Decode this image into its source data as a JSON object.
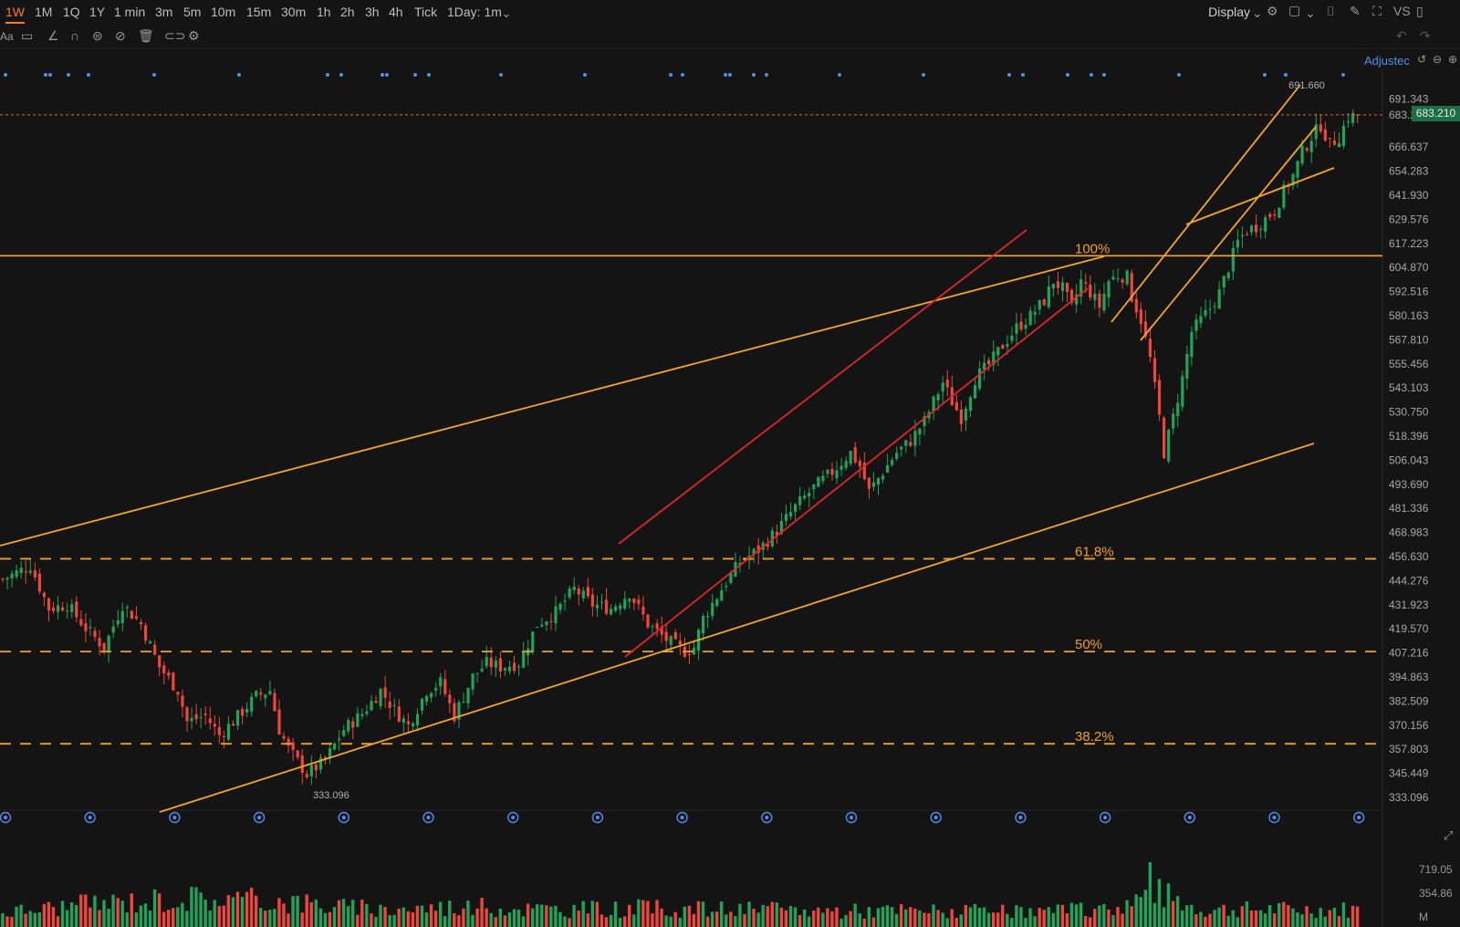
{
  "toolbar": {
    "timeframes": [
      "1W",
      "1M",
      "1Q",
      "1Y",
      "1 min",
      "3m",
      "5m",
      "10m",
      "15m",
      "30m",
      "1h",
      "2h",
      "3h",
      "4h",
      "Tick"
    ],
    "active_timeframe": "1W",
    "interval_label": "1Day: 1m",
    "display_label": "Display",
    "vs_label": "VS"
  },
  "drawbar": {
    "text_tool_label": "Aa"
  },
  "chart_header": {
    "adjusted_label": "Adjustec"
  },
  "colors": {
    "up": "#1fa45a",
    "down": "#f0453a",
    "channel_orange": "#f5a623",
    "channel_red": "#e0262b",
    "fib_dash": "#f0a020",
    "marker_blue": "#4f8ff0"
  },
  "chart_data": {
    "type": "candlestick",
    "timeframe": "1W",
    "y_axis_ticks": [
      "691.343",
      "683.210",
      "666.637",
      "654.283",
      "641.930",
      "629.576",
      "617.223",
      "604.870",
      "592.516",
      "580.163",
      "567.810",
      "555.456",
      "543.103",
      "530.750",
      "518.396",
      "506.043",
      "493.690",
      "481.336",
      "468.983",
      "456.630",
      "444.276",
      "431.923",
      "419.570",
      "407.216",
      "394.863",
      "382.509",
      "370.156",
      "357.803",
      "345.449",
      "333.096"
    ],
    "ylim": [
      327,
      707
    ],
    "last_price": "683.210",
    "high_label": "691.660",
    "low_label": "333.096",
    "fib_levels": [
      {
        "label": "100%",
        "price": 610.9
      },
      {
        "label": "61.8%",
        "price": 455.5
      },
      {
        "label": "50%",
        "price": 407.9
      },
      {
        "label": "38.2%",
        "price": 360.6
      }
    ],
    "close_path": [
      [
        0,
        445
      ],
      [
        6,
        452
      ],
      [
        10,
        430
      ],
      [
        14,
        432
      ],
      [
        18,
        420
      ],
      [
        22,
        410
      ],
      [
        26,
        432
      ],
      [
        30,
        422
      ],
      [
        34,
        400
      ],
      [
        38,
        388
      ],
      [
        40,
        372
      ],
      [
        44,
        375
      ],
      [
        47,
        365
      ],
      [
        50,
        372
      ],
      [
        55,
        385
      ],
      [
        58,
        388
      ],
      [
        60,
        368
      ],
      [
        62,
        358
      ],
      [
        66,
        345
      ],
      [
        70,
        352
      ],
      [
        74,
        368
      ],
      [
        78,
        376
      ],
      [
        82,
        388
      ],
      [
        85,
        378
      ],
      [
        88,
        370
      ],
      [
        92,
        388
      ],
      [
        95,
        392
      ],
      [
        98,
        375
      ],
      [
        102,
        395
      ],
      [
        105,
        402
      ],
      [
        108,
        400
      ],
      [
        112,
        402
      ],
      [
        116,
        422
      ],
      [
        120,
        428
      ],
      [
        124,
        440
      ],
      [
        128,
        432
      ],
      [
        132,
        430
      ],
      [
        136,
        438
      ],
      [
        140,
        422
      ],
      [
        144,
        414
      ],
      [
        148,
        408
      ],
      [
        150,
        410
      ],
      [
        152,
        425
      ],
      [
        156,
        440
      ],
      [
        160,
        454
      ],
      [
        164,
        460
      ],
      [
        168,
        470
      ],
      [
        172,
        482
      ],
      [
        176,
        492
      ],
      [
        180,
        500
      ],
      [
        184,
        510
      ],
      [
        186,
        503
      ],
      [
        188,
        490
      ],
      [
        191,
        500
      ],
      [
        194,
        510
      ],
      [
        197,
        516
      ],
      [
        200,
        526
      ],
      [
        202,
        536
      ],
      [
        204,
        546
      ],
      [
        206,
        536
      ],
      [
        208,
        528
      ],
      [
        211,
        548
      ],
      [
        214,
        555
      ],
      [
        217,
        565
      ],
      [
        220,
        574
      ],
      [
        223,
        580
      ],
      [
        226,
        588
      ],
      [
        228,
        598
      ],
      [
        230,
        594
      ],
      [
        232,
        584
      ],
      [
        234,
        598
      ],
      [
        236,
        592
      ],
      [
        238,
        585
      ],
      [
        240,
        598
      ],
      [
        242,
        601
      ],
      [
        244,
        600
      ],
      [
        245,
        590
      ],
      [
        247,
        578
      ],
      [
        249,
        558
      ],
      [
        251,
        528
      ],
      [
        252,
        510
      ],
      [
        254,
        528
      ],
      [
        256,
        548
      ],
      [
        258,
        572
      ],
      [
        260,
        578
      ],
      [
        262,
        584
      ],
      [
        264,
        592
      ],
      [
        266,
        605
      ],
      [
        268,
        618
      ],
      [
        270,
        624
      ],
      [
        272,
        626
      ],
      [
        274,
        630
      ],
      [
        276,
        634
      ],
      [
        278,
        644
      ],
      [
        280,
        652
      ],
      [
        282,
        664
      ],
      [
        284,
        672
      ],
      [
        286,
        678
      ],
      [
        288,
        668
      ],
      [
        290,
        672
      ],
      [
        292,
        682
      ],
      [
        294,
        683
      ]
    ],
    "volume_path": [
      [
        0,
        0.25
      ],
      [
        20,
        0.4
      ],
      [
        40,
        0.5
      ],
      [
        60,
        0.45
      ],
      [
        80,
        0.3
      ],
      [
        100,
        0.35
      ],
      [
        120,
        0.3
      ],
      [
        140,
        0.32
      ],
      [
        160,
        0.3
      ],
      [
        180,
        0.28
      ],
      [
        200,
        0.28
      ],
      [
        220,
        0.25
      ],
      [
        240,
        0.3
      ],
      [
        250,
        0.6
      ],
      [
        260,
        0.3
      ],
      [
        280,
        0.3
      ],
      [
        294,
        0.3
      ]
    ],
    "volume_ticks": [
      "719.05",
      "354.86",
      "M"
    ],
    "n_weeks": 295
  }
}
